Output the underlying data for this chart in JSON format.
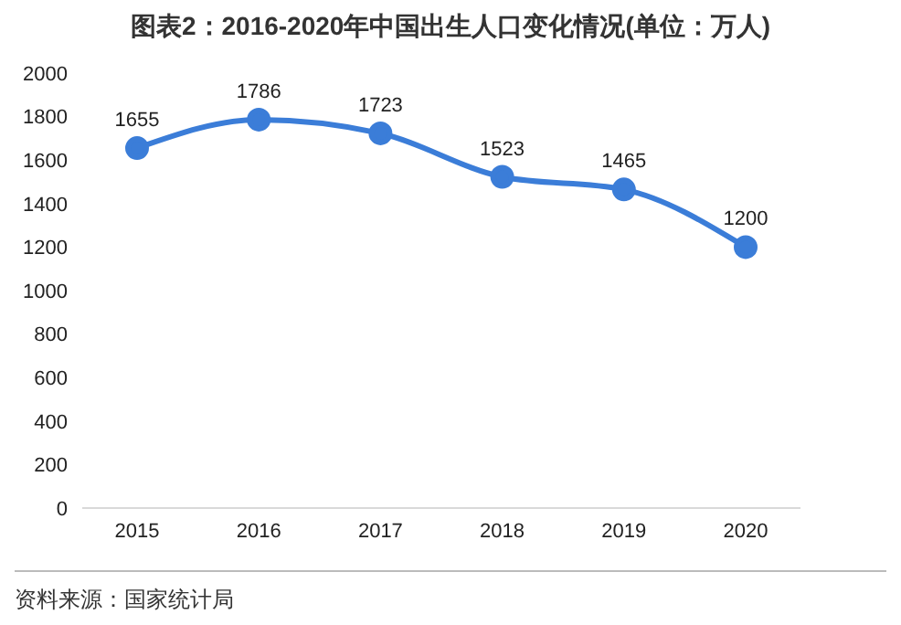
{
  "chart_data": {
    "type": "line",
    "title": "图表2：2016-2020年中国出生人口变化情况(单位：万人)",
    "categories": [
      "2015",
      "2016",
      "2017",
      "2018",
      "2019",
      "2020"
    ],
    "series": [
      {
        "color": "#3b7dd8",
        "values": [
          1655,
          1786,
          1723,
          1523,
          1465,
          1200
        ]
      }
    ],
    "ylim": [
      0,
      2000
    ],
    "yticks": [
      0,
      200,
      400,
      600,
      800,
      1000,
      1200,
      1400,
      1600,
      1800,
      2000
    ],
    "grid": false,
    "marker": "circle",
    "line_style": "solid",
    "data_labels": true,
    "annotations": [
      "资料来源：国家统计局"
    ]
  }
}
